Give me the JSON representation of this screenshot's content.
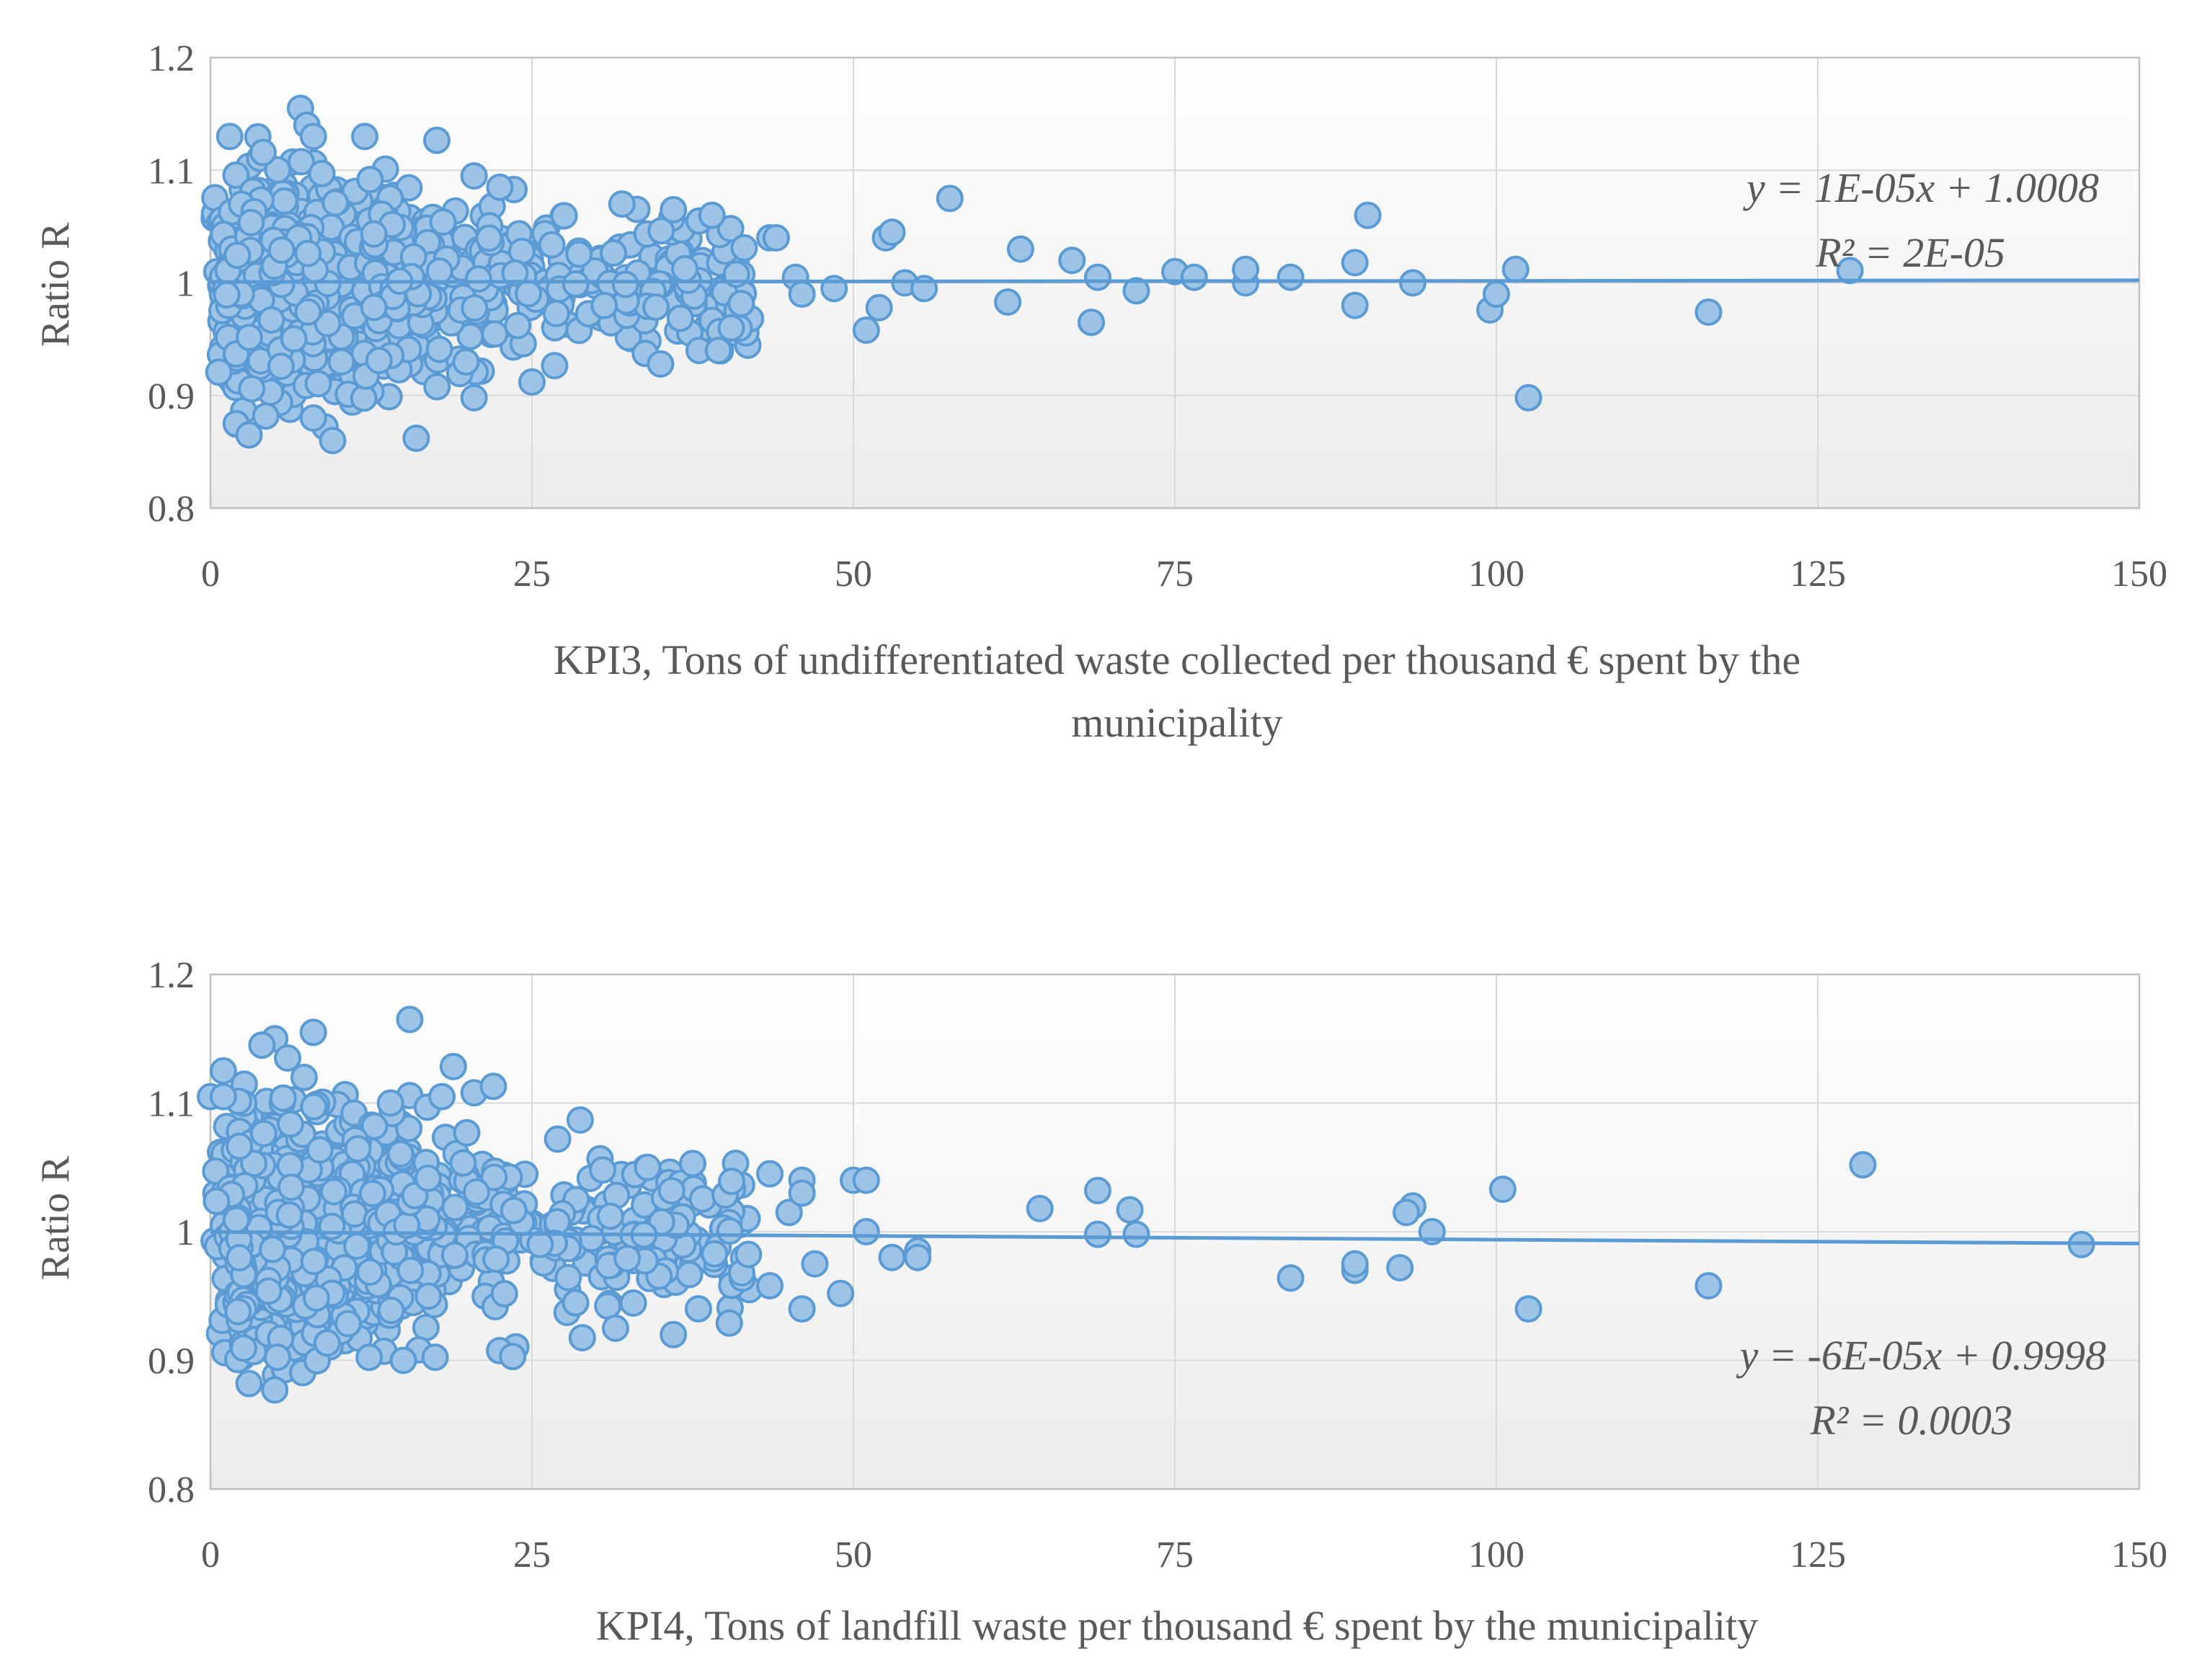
{
  "chart_data": [
    {
      "type": "scatter",
      "ylabel": "Ratio R",
      "xlabel_lines": [
        "KPI3, Tons of undifferentiated  waste collected  per thousand € spent by the",
        "municipality"
      ],
      "xlim": [
        0,
        150
      ],
      "ylim": [
        0.8,
        1.2
      ],
      "x_ticks": [
        "0",
        "25",
        "50",
        "75",
        "100",
        "125",
        "150"
      ],
      "y_ticks": [
        "0.8",
        "0.9",
        "1",
        "1.1",
        "1.2"
      ],
      "grid": true,
      "trendline": {
        "slope": 1e-05,
        "intercept": 1.0008,
        "equation": "y = 1E-05x + 1.0008",
        "r2": "R² = 2E-05"
      },
      "outliers": [
        [
          1.5,
          1.13
        ],
        [
          7,
          1.155
        ],
        [
          7.5,
          1.14
        ],
        [
          8,
          1.13
        ],
        [
          12,
          1.13
        ],
        [
          9.5,
          0.86
        ],
        [
          16,
          0.862
        ],
        [
          2,
          0.875
        ],
        [
          3,
          0.865
        ],
        [
          8,
          0.88
        ],
        [
          20.5,
          1.095
        ],
        [
          22.5,
          1.085
        ],
        [
          20.5,
          0.898
        ],
        [
          25,
          0.912
        ],
        [
          32,
          1.07
        ],
        [
          35,
          0.928
        ],
        [
          36,
          1.065
        ],
        [
          38,
          1.055
        ],
        [
          39,
          1.06
        ],
        [
          38,
          0.94
        ],
        [
          39.5,
          0.94
        ],
        [
          40.5,
          0.96
        ],
        [
          43.5,
          1.04
        ],
        [
          44,
          1.04
        ],
        [
          45.5,
          1.005
        ],
        [
          46,
          0.99
        ],
        [
          48.5,
          0.995
        ],
        [
          51,
          0.958
        ],
        [
          52,
          0.978
        ],
        [
          52.5,
          1.04
        ],
        [
          53,
          1.045
        ],
        [
          54,
          1.0
        ],
        [
          55.5,
          0.995
        ],
        [
          57.5,
          1.075
        ],
        [
          62,
          0.983
        ],
        [
          63,
          1.03
        ],
        [
          67,
          1.02
        ],
        [
          69,
          1.005
        ],
        [
          68.5,
          0.965
        ],
        [
          72,
          0.993
        ],
        [
          75,
          1.01
        ],
        [
          76.5,
          1.005
        ],
        [
          80.5,
          1.0
        ],
        [
          80.5,
          1.012
        ],
        [
          84,
          1.005
        ],
        [
          89,
          1.018
        ],
        [
          89,
          0.98
        ],
        [
          90,
          1.06
        ],
        [
          93.5,
          1.0
        ],
        [
          99.5,
          0.976
        ],
        [
          100,
          0.99
        ],
        [
          101.5,
          1.012
        ],
        [
          102.5,
          0.898
        ],
        [
          116.5,
          0.974
        ],
        [
          127.5,
          1.011
        ]
      ]
    },
    {
      "type": "scatter",
      "ylabel": "Ratio R",
      "xlabel_lines": [
        "KPI4, Tons of landfill  waste  per thousand € spent by the municipality"
      ],
      "xlim": [
        0,
        150
      ],
      "ylim": [
        0.8,
        1.2
      ],
      "x_ticks": [
        "0",
        "25",
        "50",
        "75",
        "100",
        "125",
        "150"
      ],
      "y_ticks": [
        "0.8",
        "0.9",
        "1",
        "1.1",
        "1.2"
      ],
      "grid": true,
      "trendline": {
        "slope": -6e-05,
        "intercept": 0.9998,
        "equation": "y = -6E-05x + 0.9998",
        "r2": "R² = 0.0003"
      },
      "outliers": [
        [
          15.5,
          1.165
        ],
        [
          8,
          1.155
        ],
        [
          5,
          1.15
        ],
        [
          4,
          1.145
        ],
        [
          6,
          1.135
        ],
        [
          1,
          1.125
        ],
        [
          0,
          1.105
        ],
        [
          1,
          1.105
        ],
        [
          14,
          1.1
        ],
        [
          18,
          1.105
        ],
        [
          20.5,
          1.108
        ],
        [
          22,
          1.113
        ],
        [
          27,
          1.072
        ],
        [
          30.5,
          1.048
        ],
        [
          34,
          1.05
        ],
        [
          37.5,
          1.053
        ],
        [
          31.5,
          0.925
        ],
        [
          36,
          0.92
        ],
        [
          23.5,
          0.903
        ],
        [
          15,
          0.9
        ],
        [
          5,
          0.877
        ],
        [
          3,
          0.882
        ],
        [
          43.5,
          1.045
        ],
        [
          46,
          1.04
        ],
        [
          45,
          1.015
        ],
        [
          46,
          1.03
        ],
        [
          46,
          0.94
        ],
        [
          47,
          0.975
        ],
        [
          49,
          0.952
        ],
        [
          43.5,
          0.958
        ],
        [
          50,
          1.04
        ],
        [
          51,
          1.04
        ],
        [
          51,
          1.0
        ],
        [
          53,
          0.98
        ],
        [
          55,
          0.985
        ],
        [
          55,
          0.98
        ],
        [
          64.5,
          1.018
        ],
        [
          69,
          1.032
        ],
        [
          71.5,
          1.017
        ],
        [
          69,
          0.998
        ],
        [
          72,
          0.998
        ],
        [
          84,
          0.964
        ],
        [
          89,
          0.97
        ],
        [
          89,
          0.975
        ],
        [
          92.5,
          0.972
        ],
        [
          93.5,
          1.02
        ],
        [
          93,
          1.015
        ],
        [
          95,
          1.0
        ],
        [
          100.5,
          1.033
        ],
        [
          102.5,
          0.94
        ],
        [
          116.5,
          0.958
        ],
        [
          128.5,
          1.052
        ],
        [
          145.5,
          0.99
        ]
      ]
    }
  ]
}
